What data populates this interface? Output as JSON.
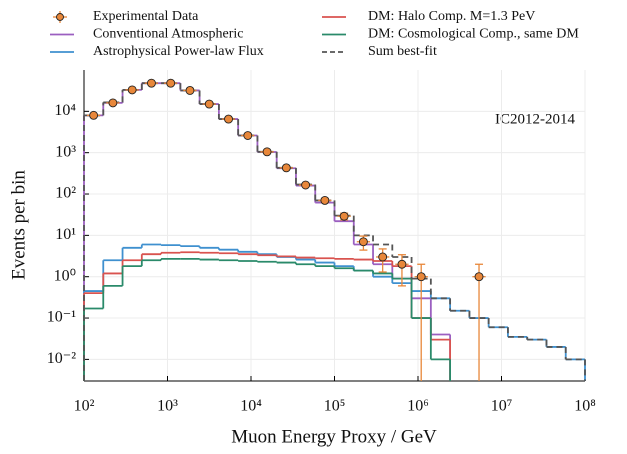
{
  "chart_data": {
    "type": "histogram",
    "annotation": "IC2012-2014",
    "x_label": "Muon Energy Proxy / GeV",
    "y_label": "Events per bin",
    "xscale": "log",
    "yscale": "log",
    "grid": true,
    "xlim": [
      100,
      100000000
    ],
    "ylim": [
      0.003,
      100000
    ],
    "xticks": [
      {
        "value": 100,
        "label": "10²"
      },
      {
        "value": 1000,
        "label": "10³"
      },
      {
        "value": 10000,
        "label": "10⁴"
      },
      {
        "value": 100000,
        "label": "10⁵"
      },
      {
        "value": 1000000,
        "label": "10⁶"
      },
      {
        "value": 10000000,
        "label": "10⁷"
      },
      {
        "value": 100000000,
        "label": "10⁸"
      }
    ],
    "yticks": [
      {
        "value": 0.01,
        "label": "10⁻²"
      },
      {
        "value": 0.1,
        "label": "10⁻¹"
      },
      {
        "value": 1,
        "label": "10⁰"
      },
      {
        "value": 10,
        "label": "10¹"
      },
      {
        "value": 100,
        "label": "10²"
      },
      {
        "value": 1000,
        "label": "10³"
      },
      {
        "value": 10000,
        "label": "10⁴"
      }
    ],
    "bins": [
      100,
      170.1,
      289.5,
      492.4,
      837.7,
      1425,
      2424,
      4125,
      7017,
      11938,
      20309,
      34551,
      58780,
      100000,
      170125,
      289427,
      492388,
      837678,
      1425103,
      2424462,
      4124626,
      7017038,
      11937766,
      20309176,
      34551072,
      58780160,
      100000000
    ],
    "series": [
      {
        "name": "Experimental Data",
        "style": "errorbar",
        "color": "#e8873a",
        "values": [
          8000,
          16000,
          33000,
          48000,
          48000,
          32000,
          15000,
          6500,
          2600,
          1050,
          430,
          165,
          70,
          29,
          7,
          3,
          2,
          1,
          null,
          null,
          1,
          null,
          null,
          null,
          null,
          null
        ],
        "errors": [
          89,
          126,
          182,
          219,
          219,
          179,
          122,
          81,
          51,
          32,
          21,
          13,
          8,
          5.4,
          2.6,
          1.7,
          1.4,
          1,
          null,
          null,
          1,
          null,
          null,
          null,
          null,
          null
        ]
      },
      {
        "name": "Conventional Atmospheric",
        "style": "step",
        "color": "#9b5fc0",
        "values": [
          8000,
          16000,
          33000,
          48000,
          48000,
          32000,
          15000,
          6500,
          2600,
          1040,
          420,
          160,
          62,
          22,
          6,
          2,
          0.9,
          0.3,
          0.04,
          null,
          null,
          null,
          null,
          null,
          null,
          null
        ]
      },
      {
        "name": "Astrophysical Power-law Flux",
        "style": "step",
        "color": "#3f90cf",
        "values": [
          0.45,
          2.5,
          5,
          6,
          5.8,
          5.5,
          5,
          4.5,
          4,
          3.5,
          3,
          2.6,
          2.2,
          1.8,
          1.4,
          1,
          0.7,
          0.45,
          0.3,
          0.15,
          0.1,
          0.06,
          0.035,
          0.03,
          0.02,
          0.01
        ]
      },
      {
        "name": "DM: Halo Comp. M=1.3 PeV",
        "style": "step",
        "color": "#d9534f",
        "values": [
          0.4,
          1.2,
          2.5,
          3.5,
          3.8,
          3.9,
          3.8,
          3.7,
          3.5,
          3.3,
          3.1,
          2.9,
          2.8,
          2.7,
          2.6,
          2.4,
          1.8,
          0.1,
          0.03,
          null,
          null,
          null,
          null,
          null,
          null,
          null
        ]
      },
      {
        "name": "DM: Cosmological Comp., same DM",
        "style": "step",
        "color": "#2a8a6a",
        "values": [
          0.17,
          0.6,
          1.8,
          2.5,
          2.7,
          2.7,
          2.6,
          2.5,
          2.4,
          2.3,
          2.2,
          2,
          1.8,
          1.6,
          1.4,
          1.2,
          0.9,
          0.1,
          0.01,
          null,
          null,
          null,
          null,
          null,
          null,
          null
        ]
      },
      {
        "name": "Sum best-fit",
        "style": "dashed-step",
        "color": "#555555",
        "values": [
          8000,
          16500,
          33000,
          48000,
          48000,
          32000,
          15000,
          6500,
          2600,
          1050,
          430,
          170,
          70,
          30,
          10,
          6,
          3,
          0.9,
          0.3,
          0.15,
          0.1,
          0.06,
          0.035,
          0.03,
          0.02,
          0.01
        ]
      }
    ]
  }
}
